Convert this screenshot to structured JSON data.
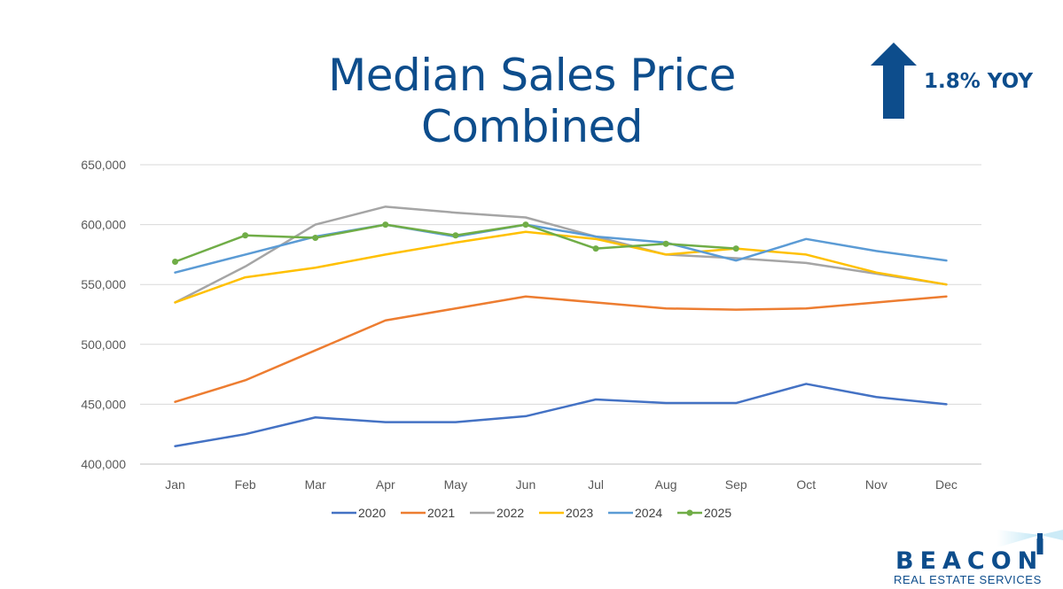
{
  "header": {
    "title": "Median Sales Price Combined",
    "yoy_label": "1.8% YOY"
  },
  "logo": {
    "name": "BEACON",
    "subtitle": "REAL ESTATE SERVICES"
  },
  "colors": {
    "title": "#0d4d8c",
    "arrow": "#0d4d8c",
    "grid": "#d9d9d9"
  },
  "chart_data": {
    "type": "line",
    "title": "",
    "xlabel": "",
    "ylabel": "",
    "ylim": [
      400000,
      650000
    ],
    "yticks": [
      400000,
      450000,
      500000,
      550000,
      600000,
      650000
    ],
    "ytick_labels": [
      "400,000",
      "450,000",
      "500,000",
      "550,000",
      "600,000",
      "650,000"
    ],
    "grid": true,
    "legend_position": "bottom",
    "categories": [
      "Jan",
      "Feb",
      "Mar",
      "Apr",
      "May",
      "Jun",
      "Jul",
      "Aug",
      "Sep",
      "Oct",
      "Nov",
      "Dec"
    ],
    "series": [
      {
        "name": "2020",
        "color": "#4472c4",
        "markers": false,
        "values": [
          415000,
          425000,
          439000,
          435000,
          435000,
          440000,
          454000,
          451000,
          451000,
          467000,
          456000,
          450000
        ]
      },
      {
        "name": "2021",
        "color": "#ed7d31",
        "markers": false,
        "values": [
          452000,
          470000,
          495000,
          520000,
          530000,
          540000,
          535000,
          530000,
          529000,
          530000,
          535000,
          540000
        ]
      },
      {
        "name": "2022",
        "color": "#a5a5a5",
        "markers": false,
        "values": [
          535000,
          565000,
          600000,
          615000,
          610000,
          606000,
          590000,
          575000,
          572000,
          568000,
          559000,
          550000
        ]
      },
      {
        "name": "2023",
        "color": "#ffc000",
        "markers": false,
        "values": [
          535000,
          556000,
          564000,
          575000,
          585000,
          594000,
          588000,
          575000,
          580000,
          575000,
          560000,
          550000
        ]
      },
      {
        "name": "2024",
        "color": "#5b9bd5",
        "markers": false,
        "values": [
          560000,
          575000,
          590000,
          600000,
          590000,
          600000,
          590000,
          585000,
          570000,
          588000,
          578000,
          570000
        ]
      },
      {
        "name": "2025",
        "color": "#70ad47",
        "markers": true,
        "values": [
          569000,
          591000,
          589000,
          600000,
          591000,
          600000,
          580000,
          584000,
          580000,
          null,
          null,
          null
        ]
      }
    ]
  }
}
